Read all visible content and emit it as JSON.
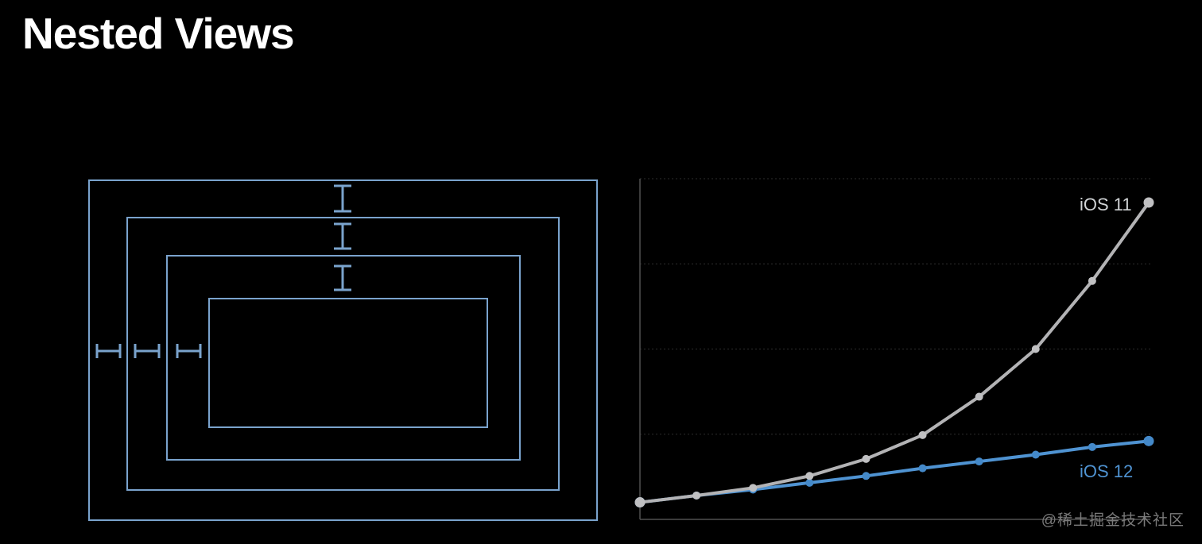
{
  "page": {
    "title": "Nested Views",
    "background": "#000000",
    "watermark": "@稀土掘金技术社区"
  },
  "diagram": {
    "name": "nested-views-diagram",
    "nesting_levels": 4,
    "top_spacing_markers": 3,
    "left_spacing_markers": 3,
    "stroke_color": "#7aa3cd"
  },
  "chart_data": {
    "type": "line",
    "title": "",
    "xlabel": "",
    "ylabel": "",
    "x": [
      1,
      2,
      3,
      4,
      5,
      6,
      7,
      8,
      9,
      10
    ],
    "ylim": [
      0,
      4
    ],
    "series": [
      {
        "id": "ios-11",
        "name": "iOS 11",
        "color": "#b3b3b5",
        "dot_color": "#c0c0c2",
        "label_color": "#d0d3d5",
        "values": [
          0.2,
          0.28,
          0.37,
          0.51,
          0.71,
          0.99,
          1.44,
          2.0,
          2.8,
          3.72
        ]
      },
      {
        "id": "ios-12",
        "name": "iOS 12",
        "color": "#4f93d2",
        "dot_color": "#4489c9",
        "label_color": "#4f93d2",
        "values": [
          0.2,
          0.28,
          0.35,
          0.43,
          0.51,
          0.6,
          0.68,
          0.76,
          0.85,
          0.92
        ]
      }
    ],
    "gridlines": {
      "y_values": [
        1,
        2,
        3,
        4
      ],
      "style": "dotted",
      "color": "#2e2e2e"
    },
    "axes": {
      "left": true,
      "bottom": true,
      "color": "#505050"
    },
    "legend": "inline-labels-at-line-ends",
    "tick_labels": "none"
  }
}
